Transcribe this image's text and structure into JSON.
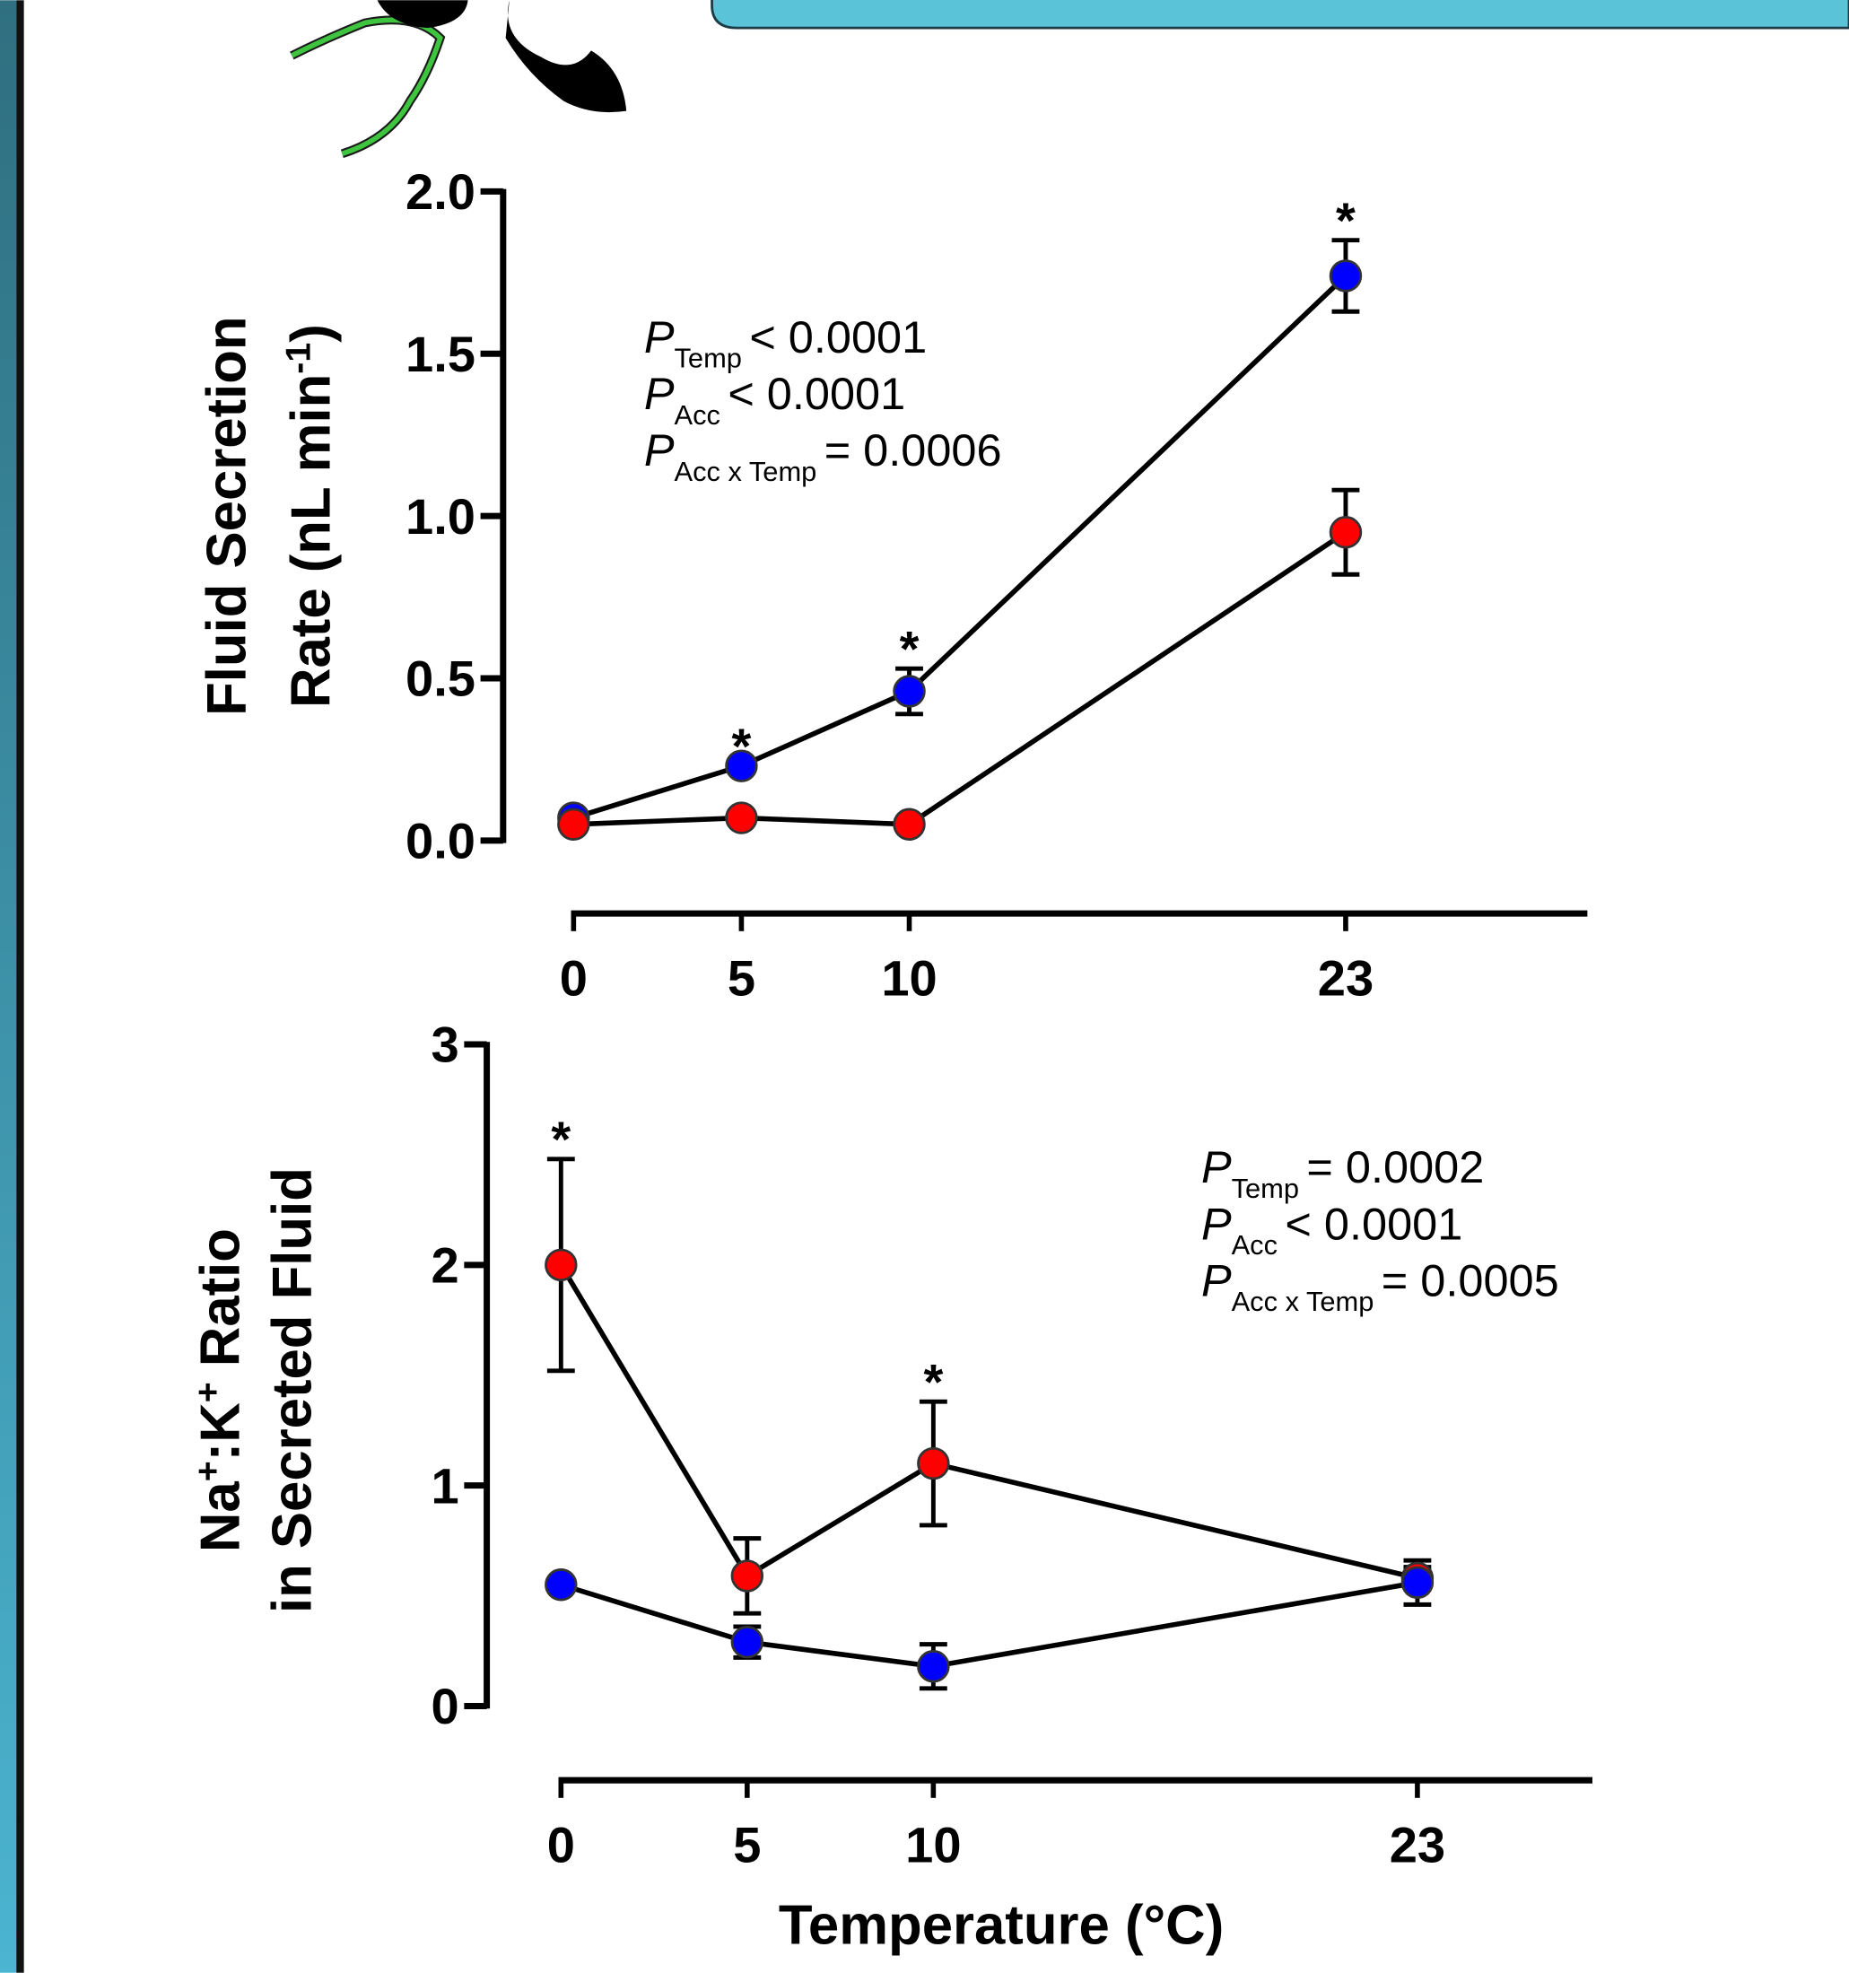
{
  "chart_data": [
    {
      "type": "line",
      "y_label": [
        [
          {
            "text": "Fluid Secretion"
          }
        ],
        [
          {
            "text": "Rate (nL min"
          },
          {
            "text": "-1",
            "sup": true
          },
          {
            "text": ")"
          }
        ]
      ],
      "x": [
        0,
        5,
        10,
        23
      ],
      "xlim": [
        0,
        30.2
      ],
      "xticks": [
        0,
        5,
        10,
        23
      ],
      "ylim": [
        0,
        2
      ],
      "yticks": [
        {
          "value": 0,
          "label": "0.0"
        },
        0.5,
        {
          "value": 1,
          "label": "1.0"
        },
        1.5,
        {
          "value": 2,
          "label": "2.0"
        }
      ],
      "series": [
        {
          "color": "#0000ff",
          "values": [
            0.07,
            0.23,
            0.46,
            1.74
          ],
          "errors": [
            0,
            0,
            0.07,
            0.11
          ]
        },
        {
          "color": "#ff0000",
          "values": [
            0.05,
            0.07,
            0.05,
            0.95
          ],
          "errors": [
            0,
            0,
            0,
            0.13
          ]
        }
      ],
      "annotations": [
        {
          "text": "*",
          "x": 5
        },
        {
          "text": "*",
          "x": 10
        },
        {
          "text": "*",
          "x": 23
        }
      ],
      "stats": [
        {
          "symbol": "P",
          "subscript": "Temp",
          "text": "< 0.0001"
        },
        {
          "symbol": "P",
          "subscript": "Acc",
          "text": "< 0.0001"
        },
        {
          "symbol": "P",
          "subscript": "Acc x Temp",
          "text": "= 0.0006"
        }
      ]
    },
    {
      "type": "line",
      "y_label": [
        [
          {
            "text": "Na"
          },
          {
            "text": "+",
            "sup": true
          },
          {
            "text": ":K"
          },
          {
            "text": "+",
            "sup": true
          },
          {
            "text": " Ratio"
          }
        ],
        [
          {
            "text": "in Secreted Fluid"
          }
        ]
      ],
      "x_label": "Temperature (°C)",
      "x": [
        0,
        5,
        10,
        23
      ],
      "xlim": [
        0,
        27.7
      ],
      "xticks": [
        0,
        5,
        10,
        23
      ],
      "ylim": [
        0,
        3
      ],
      "yticks": [
        0,
        1,
        2,
        3
      ],
      "series": [
        {
          "color": "#ff0000",
          "values": [
            2.0,
            0.59,
            1.1,
            0.58
          ],
          "errors": [
            0.48,
            0.17,
            0.28,
            0.05
          ]
        },
        {
          "color": "#0000ff",
          "values": [
            0.55,
            0.29,
            0.18,
            0.56
          ],
          "errors": [
            0,
            0.07,
            0.1,
            0.1
          ]
        }
      ],
      "annotations": [
        {
          "text": "*",
          "x": 0
        },
        {
          "text": "*",
          "x": 10
        }
      ],
      "stats": [
        {
          "symbol": "P",
          "subscript": "Temp",
          "text": "= 0.0002"
        },
        {
          "symbol": "P",
          "subscript": "Acc",
          "text": "< 0.0001"
        },
        {
          "symbol": "P",
          "subscript": "Acc x Temp",
          "text": "= 0.0005"
        }
      ]
    }
  ]
}
